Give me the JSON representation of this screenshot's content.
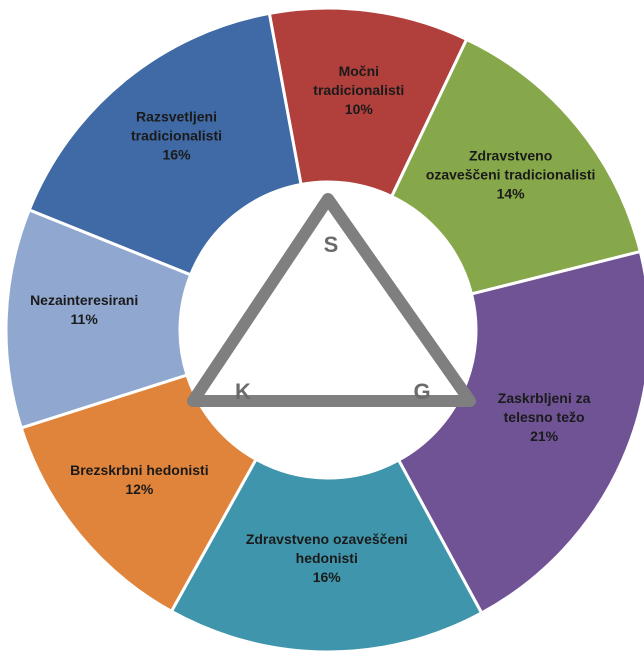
{
  "chart_data": {
    "type": "pie",
    "variant": "donut",
    "title": "",
    "slices": [
      {
        "label_lines": [
          "Močni",
          "tradicionalisti"
        ],
        "pct_label": "10%",
        "value": 10,
        "color": "#b1403c"
      },
      {
        "label_lines": [
          "Zdravstveno",
          "ozaveščeni tradicionalisti"
        ],
        "pct_label": "14%",
        "value": 14,
        "color": "#87a84a"
      },
      {
        "label_lines": [
          "Zaskrbljeni za",
          "telesno težo"
        ],
        "pct_label": "21%",
        "value": 21,
        "color": "#6f5395"
      },
      {
        "label_lines": [
          "Zdravstveno ozaveščeni",
          "hedonisti"
        ],
        "pct_label": "16%",
        "value": 16,
        "color": "#3f95ab"
      },
      {
        "label_lines": [
          "Brezskrbni hedonisti"
        ],
        "pct_label": "12%",
        "value": 12,
        "color": "#e0843c"
      },
      {
        "label_lines": [
          "Nezainteresirani"
        ],
        "pct_label": "11%",
        "value": 11,
        "color": "#90a8d0"
      },
      {
        "label_lines": [
          "Razsvetljeni",
          "tradicionalisti"
        ],
        "pct_label": "16%",
        "value": 16,
        "color": "#3f6aa5"
      }
    ],
    "start_angle_deg": -10.5,
    "direction": "clockwise",
    "center_symbol": {
      "shape": "triangle",
      "color": "#7f7f7f",
      "letters": {
        "top": "S",
        "bottom_left": "K",
        "bottom_right": "G"
      }
    }
  }
}
